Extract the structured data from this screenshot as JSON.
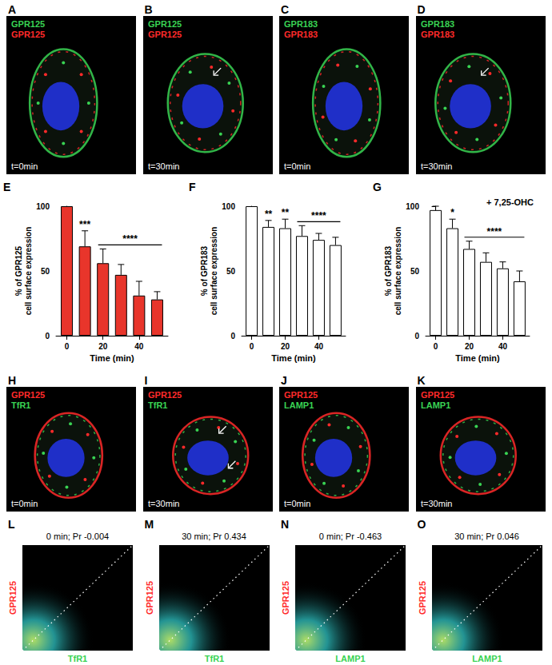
{
  "image_panels": [
    {
      "panel_label": "A",
      "labels": [
        {
          "text": "GPR125",
          "color": "#39d353"
        },
        {
          "text": "GPR125",
          "color": "#ff2a2a"
        }
      ],
      "time": "t=0min"
    },
    {
      "panel_label": "B",
      "labels": [
        {
          "text": "GPR125",
          "color": "#39d353"
        },
        {
          "text": "GPR125",
          "color": "#ff2a2a"
        }
      ],
      "time": "t=30min",
      "arrows": 1
    },
    {
      "panel_label": "C",
      "labels": [
        {
          "text": "GPR183",
          "color": "#39d353"
        },
        {
          "text": "GPR183",
          "color": "#ff2a2a"
        }
      ],
      "time": "t=0min"
    },
    {
      "panel_label": "D",
      "labels": [
        {
          "text": "GPR183",
          "color": "#39d353"
        },
        {
          "text": "GPR183",
          "color": "#ff2a2a"
        }
      ],
      "time": "t=30min",
      "arrows": 1
    },
    {
      "panel_label": "H",
      "labels": [
        {
          "text": "GPR125",
          "color": "#ff2a2a"
        },
        {
          "text": "TfR1",
          "color": "#39d353"
        }
      ],
      "time": "t=0min"
    },
    {
      "panel_label": "I",
      "labels": [
        {
          "text": "GPR125",
          "color": "#ff2a2a"
        },
        {
          "text": "TfR1",
          "color": "#39d353"
        }
      ],
      "time": "t=30min",
      "arrows": 2
    },
    {
      "panel_label": "J",
      "labels": [
        {
          "text": "GPR125",
          "color": "#ff2a2a"
        },
        {
          "text": "LAMP1",
          "color": "#39d353"
        }
      ],
      "time": "t=0min"
    },
    {
      "panel_label": "K",
      "labels": [
        {
          "text": "GPR125",
          "color": "#ff2a2a"
        },
        {
          "text": "LAMP1",
          "color": "#39d353"
        }
      ],
      "time": "t=30min"
    }
  ],
  "chart_data": [
    {
      "type": "bar",
      "panel_label": "E",
      "x": [
        0,
        10,
        20,
        30,
        40,
        50
      ],
      "values": [
        100,
        69,
        56,
        47,
        31,
        28
      ],
      "errors": [
        0,
        12,
        11,
        8,
        11,
        6
      ],
      "color": "#e8352b",
      "xlim": [
        -6,
        56
      ],
      "xticks": [
        0,
        20,
        40
      ],
      "ylim": [
        0,
        100
      ],
      "yticks": [
        0,
        50,
        100
      ],
      "x_label": "Time (min)",
      "y_label": "% of GPR125\ncell surface expression",
      "annotations": [
        {
          "x": 10,
          "text": "***"
        },
        {
          "x": [
            20,
            50
          ],
          "text": "****"
        }
      ]
    },
    {
      "type": "bar",
      "panel_label": "F",
      "x": [
        0,
        10,
        20,
        30,
        40,
        50
      ],
      "values": [
        100,
        84,
        83,
        77,
        74,
        70
      ],
      "errors": [
        0,
        5,
        7,
        8,
        5,
        6
      ],
      "color": "#ffffff",
      "xlim": [
        -6,
        56
      ],
      "xticks": [
        0,
        20,
        40
      ],
      "ylim": [
        0,
        100
      ],
      "yticks": [
        0,
        50,
        100
      ],
      "x_label": "Time (min)",
      "y_label": "% of GPR183\ncell surface expression",
      "annotations": [
        {
          "x": 10,
          "text": "**"
        },
        {
          "x": 20,
          "text": "**"
        },
        {
          "x": [
            30,
            50
          ],
          "text": "****"
        }
      ]
    },
    {
      "type": "bar",
      "panel_label": "G",
      "title": "+ 7,25-OHC",
      "x": [
        0,
        10,
        20,
        30,
        40,
        50
      ],
      "values": [
        97,
        83,
        67,
        57,
        52,
        42
      ],
      "errors": [
        3,
        7,
        6,
        7,
        5,
        8
      ],
      "color": "#ffffff",
      "xlim": [
        -6,
        56
      ],
      "xticks": [
        0,
        20,
        40
      ],
      "ylim": [
        0,
        100
      ],
      "yticks": [
        0,
        50,
        100
      ],
      "x_label": "Time (min)",
      "y_label": "% of GPR183\ncell surface expression",
      "annotations": [
        {
          "x": 10,
          "text": "*"
        },
        {
          "x": [
            20,
            50
          ],
          "text": "****"
        }
      ]
    }
  ],
  "scatter_panels": [
    {
      "panel_label": "L",
      "title": "0 min; Pr -0.004",
      "x_label": "TfR1",
      "y_label": "GPR125",
      "x_color": "#39d353",
      "y_color": "#ff2a2a"
    },
    {
      "panel_label": "M",
      "title": "30 min; Pr 0.434",
      "x_label": "TfR1",
      "y_label": "GPR125",
      "x_color": "#39d353",
      "y_color": "#ff2a2a"
    },
    {
      "panel_label": "N",
      "title": "0 min; Pr -0.463",
      "x_label": "LAMP1",
      "y_label": "GPR125",
      "x_color": "#39d353",
      "y_color": "#ff2a2a"
    },
    {
      "panel_label": "O",
      "title": "30 min; Pr 0.046",
      "x_label": "LAMP1",
      "y_label": "GPR125",
      "x_color": "#39d353",
      "y_color": "#ff2a2a"
    }
  ]
}
